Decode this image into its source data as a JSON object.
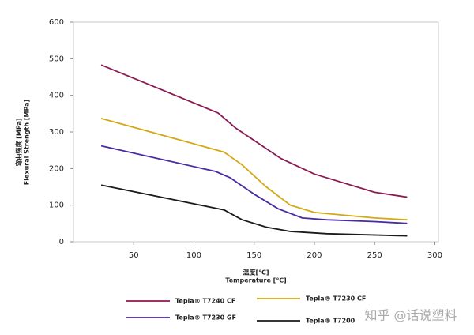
{
  "chart_data": {
    "type": "line",
    "y_label": [
      "弯曲强度 [MPa]",
      "Flexural Strength [MPa]"
    ],
    "x_label": [
      "温度[℃]",
      "Temperature [℃]"
    ],
    "xlim": [
      0,
      303
    ],
    "xticks": [
      50,
      100,
      150,
      200,
      250,
      300
    ],
    "ylim": [
      0,
      600
    ],
    "yticks": [
      0,
      100,
      200,
      300,
      400,
      500,
      600
    ],
    "series": [
      {
        "name": "Tepla® T7240 CF",
        "color": "#8b1a52",
        "x": [
          23,
          120,
          135,
          172,
          200,
          250,
          277
        ],
        "values": [
          483,
          352,
          310,
          228,
          185,
          135,
          122
        ]
      },
      {
        "name": "Tepla® T7230 CF",
        "color": "#d2a815",
        "x": [
          23,
          125,
          140,
          160,
          180,
          200,
          250,
          277
        ],
        "values": [
          337,
          245,
          210,
          150,
          100,
          80,
          65,
          60
        ]
      },
      {
        "name": "Tepla® T7230 GF",
        "color": "#4a2aa3",
        "x": [
          23,
          118,
          130,
          150,
          170,
          190,
          210,
          250,
          277
        ],
        "values": [
          262,
          192,
          175,
          130,
          90,
          65,
          60,
          55,
          50
        ]
      },
      {
        "name": "Tepla® T7200",
        "color": "#1a1a1a",
        "x": [
          23,
          125,
          140,
          160,
          180,
          210,
          277
        ],
        "values": [
          155,
          87,
          60,
          40,
          28,
          22,
          16
        ]
      }
    ],
    "watermark": "知乎 @话说塑料"
  }
}
